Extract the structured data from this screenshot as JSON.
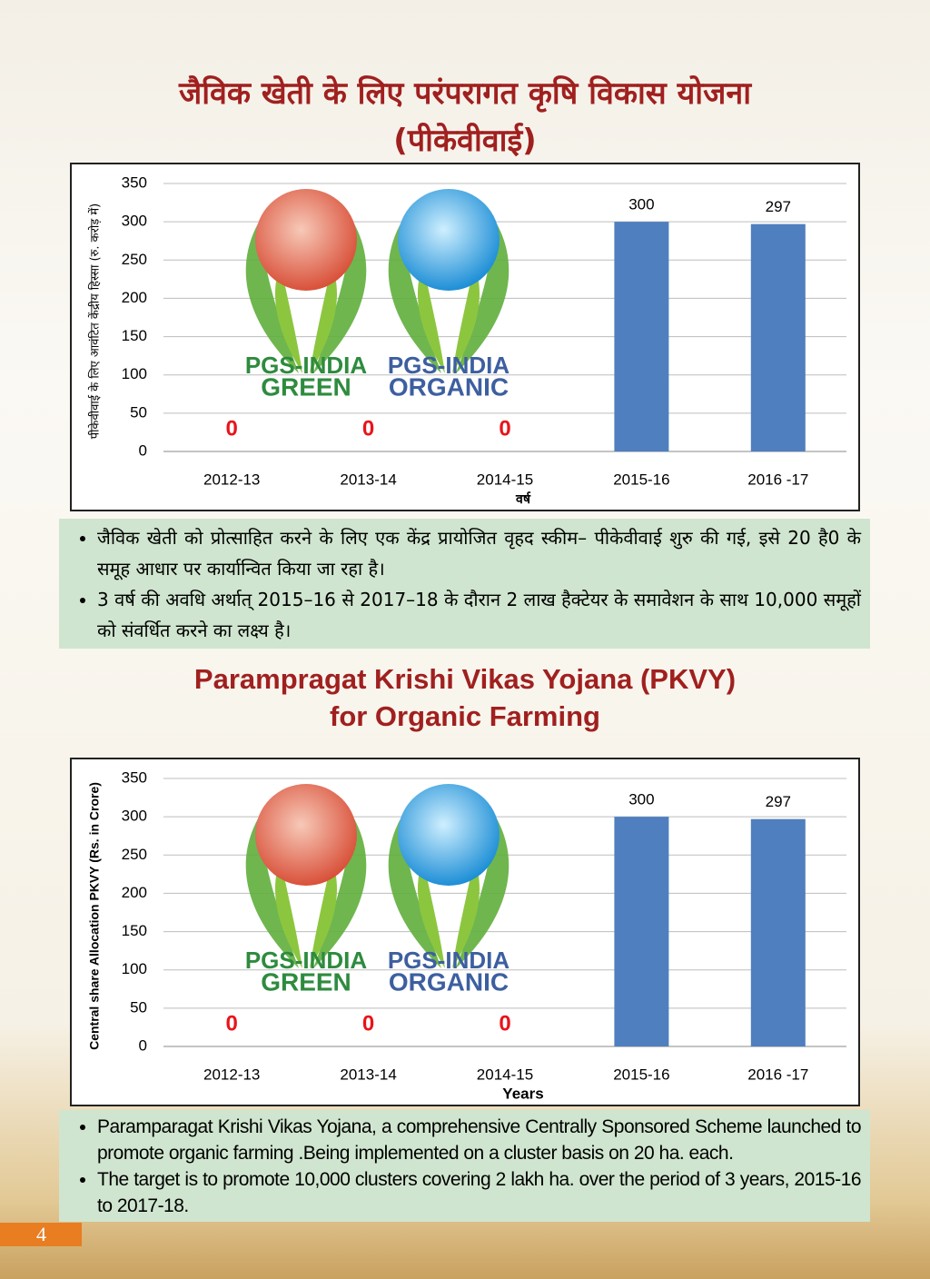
{
  "sections": [
    {
      "title": [
        "जैविक खेती के लिए परंपरागत कृषि विकास योजना",
        "(पीकेवीवाई)"
      ],
      "bullets": [
        "जैविक खेती को प्रोत्साहित करने के लिए एक केंद्र प्रायोजित वृहद स्कीम– पीकेवीवाई शुरु की गई, इसे 20 है0 के समूह आधार पर कार्यान्वित किया जा रहा है।",
        "3 वर्ष की अवधि अर्थात् 2015–16 से 2017–18 के दौरान 2 लाख हैक्टेयर के समावेशन के साथ 10,000 समूहों को संवर्धित करने का लक्ष्य है।"
      ]
    },
    {
      "title": [
        "Parampragat  Krishi Vikas Yojana (PKVY)",
        "for Organic Farming"
      ],
      "bullets": [
        "Paramparagat Krishi Vikas Yojana, a comprehensive Centrally Sponsored Scheme launched to promote organic farming .Being implemented on a cluster basis on 20 ha. each.",
        "The target is to promote 10,000 clusters covering 2 lakh ha. over the period of 3 years, 2015-16 to 2017-18."
      ]
    }
  ],
  "chart_data": [
    {
      "type": "bar",
      "y_label": "पीकेवीवाई के लिए आवंटित केंद्रीय हिस्सा (रु. करोड़ में)",
      "x_label": "वर्ष",
      "categories": [
        "2012-13",
        "2013-14",
        "2014-15",
        "2015-16",
        "2016 -17"
      ],
      "values": [
        0,
        0,
        0,
        300,
        297
      ],
      "color": "#4f7fbf",
      "ylim": [
        0,
        350
      ],
      "yticks": [
        0,
        50,
        100,
        150,
        200,
        250,
        300,
        350
      ],
      "grid": true,
      "logos": [
        [
          "PGS-INDIA",
          "GREEN"
        ],
        [
          "PGS-INDIA",
          "ORGANIC"
        ]
      ]
    },
    {
      "type": "bar",
      "y_label": "Central share  Allocation PKVY (Rs. in Crore)",
      "x_label": "Years",
      "categories": [
        "2012-13",
        "2013-14",
        "2014-15",
        "2015-16",
        "2016 -17"
      ],
      "values": [
        0,
        0,
        0,
        300,
        297
      ],
      "color": "#4f7fbf",
      "ylim": [
        0,
        350
      ],
      "yticks": [
        0,
        50,
        100,
        150,
        200,
        250,
        300,
        350
      ],
      "grid": true,
      "logos": [
        [
          "PGS-INDIA",
          "GREEN"
        ],
        [
          "PGS-INDIA",
          "ORGANIC"
        ]
      ]
    }
  ],
  "page_number": "4"
}
